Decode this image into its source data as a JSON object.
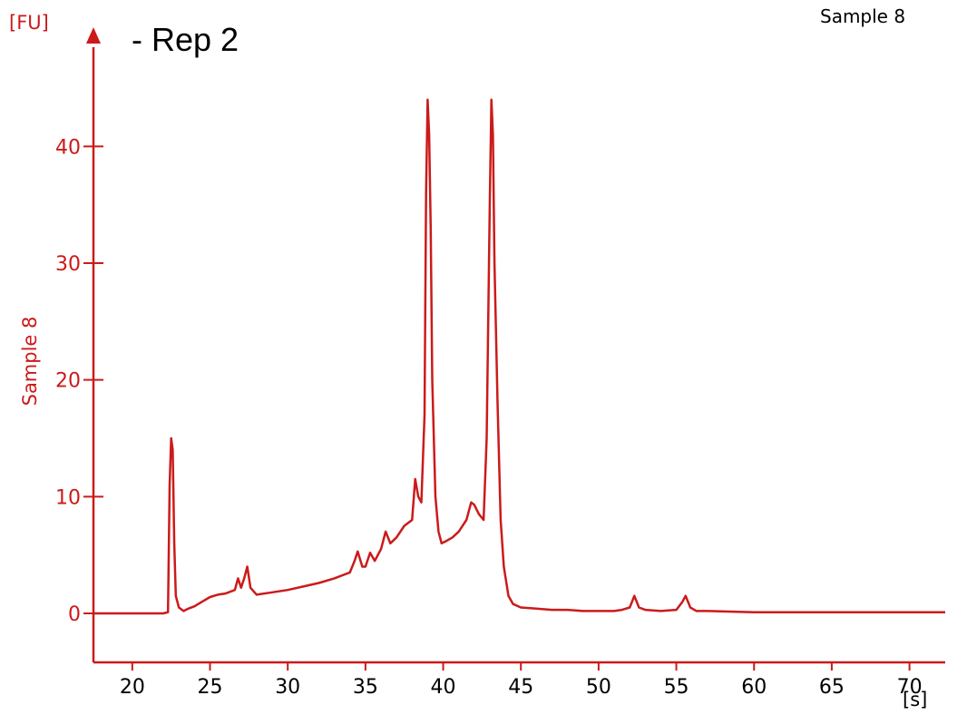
{
  "chart_data": {
    "type": "line",
    "title_fragment": "- Rep 2",
    "legend_label": "Sample 8",
    "ylabel": "Sample 8",
    "y_unit": "[FU]",
    "x_unit": "[s]",
    "xlim": [
      17.5,
      72.3
    ],
    "ylim": [
      -4.2,
      48.5
    ],
    "x_ticks": [
      20,
      25,
      30,
      35,
      40,
      45,
      50,
      55,
      60,
      65,
      70
    ],
    "y_ticks": [
      0,
      10,
      20,
      30,
      40
    ],
    "grid": false,
    "colors": {
      "axis": "#cc1a1a",
      "series": "#cc1a1a",
      "text": "#000000"
    },
    "series": [
      {
        "x": [
          17.5,
          20,
          22,
          22.3,
          22.4,
          22.5,
          22.6,
          22.7,
          22.8,
          23.0,
          23.3,
          23.6,
          24.0,
          24.5,
          25.0,
          25.5,
          26.0,
          26.6,
          26.8,
          27.0,
          27.2,
          27.4,
          27.6,
          28.0,
          29.0,
          30.0,
          31.0,
          32.0,
          33.0,
          34.0,
          34.3,
          34.5,
          34.8,
          35.0,
          35.3,
          35.6,
          36.0,
          36.3,
          36.6,
          37.0,
          37.5,
          38.0,
          38.2,
          38.4,
          38.6,
          38.8,
          38.9,
          39.0,
          39.1,
          39.2,
          39.3,
          39.5,
          39.7,
          39.9,
          40.2,
          40.6,
          41.0,
          41.5,
          41.8,
          42.0,
          42.3,
          42.6,
          42.8,
          43.0,
          43.1,
          43.2,
          43.3,
          43.5,
          43.7,
          43.9,
          44.2,
          44.5,
          45.0,
          46.0,
          47.0,
          48.0,
          49.0,
          50.0,
          51.0,
          51.5,
          52.0,
          52.3,
          52.6,
          53.0,
          54.0,
          55.0,
          55.4,
          55.6,
          55.9,
          56.3,
          57.0,
          60.0,
          63.0,
          66.0,
          69.0,
          72.3
        ],
        "y": [
          0.0,
          0.0,
          0.0,
          0.1,
          11,
          15,
          14,
          6,
          1.5,
          0.5,
          0.2,
          0.4,
          0.6,
          1.0,
          1.4,
          1.6,
          1.7,
          2.0,
          3.0,
          2.2,
          3.0,
          4.0,
          2.2,
          1.6,
          1.8,
          2.0,
          2.3,
          2.6,
          3.0,
          3.5,
          4.5,
          5.3,
          4.0,
          4.0,
          5.2,
          4.5,
          5.5,
          7.0,
          6.0,
          6.5,
          7.5,
          8.0,
          11.5,
          10.0,
          9.5,
          17,
          36,
          44,
          41,
          33,
          20,
          10,
          7,
          6,
          6.2,
          6.5,
          7.0,
          8.0,
          9.5,
          9.3,
          8.5,
          8.0,
          15,
          35,
          44,
          41,
          30,
          18,
          8,
          4,
          1.5,
          0.8,
          0.5,
          0.4,
          0.3,
          0.3,
          0.2,
          0.2,
          0.2,
          0.3,
          0.5,
          1.5,
          0.5,
          0.3,
          0.2,
          0.3,
          1.0,
          1.5,
          0.5,
          0.2,
          0.2,
          0.1,
          0.1,
          0.1,
          0.1,
          0.1
        ]
      }
    ]
  }
}
